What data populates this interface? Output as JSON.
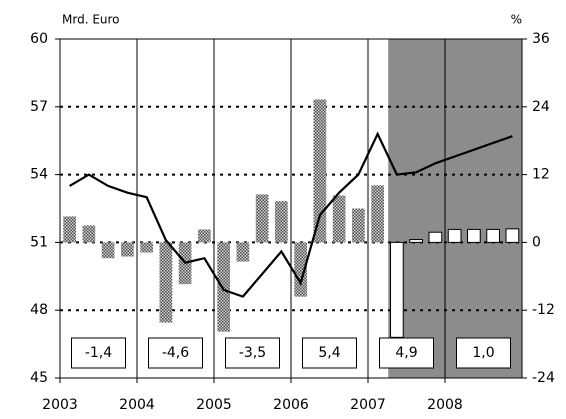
{
  "chart_data": {
    "type": "bar_line",
    "y_label": "Mrd. Euro",
    "y2_label": "%",
    "categories": [
      null,
      null,
      null,
      null,
      null,
      null,
      null,
      null,
      null,
      null,
      null,
      null,
      null,
      null,
      null,
      null,
      null,
      null,
      null,
      null,
      null,
      null,
      null,
      null
    ],
    "xlim": [
      2003,
      2009
    ],
    "xticks": [
      2003,
      2004,
      2005,
      2006,
      2007,
      2008
    ],
    "ylim": [
      45,
      60
    ],
    "yticks": [
      45,
      48,
      51,
      54,
      57,
      60
    ],
    "y2lim": [
      -24,
      36
    ],
    "y2ticks": [
      -24,
      -12,
      0,
      12,
      24,
      36
    ],
    "grid": true,
    "series": [
      {
        "type": "bar",
        "axis": "y2",
        "color": "#a8a8a8",
        "forecast_color": "#ffffff",
        "values": [
          4.6,
          3.0,
          -2.8,
          -2.5,
          -1.8,
          -14.2,
          -7.4,
          2.3,
          -15.8,
          -3.4,
          8.5,
          7.3,
          -9.6,
          25.3,
          8.3,
          6.0,
          10.1,
          -16.8,
          0.5,
          1.8,
          2.3,
          2.3,
          2.3,
          2.4
        ]
      },
      {
        "type": "line",
        "axis": "y",
        "color": "#000000",
        "values": [
          53.5,
          54.0,
          53.5,
          53.2,
          53.0,
          51.1,
          50.1,
          50.3,
          48.9,
          48.6,
          49.6,
          50.6,
          49.2,
          52.2,
          53.2,
          54.0,
          55.8,
          54.0,
          54.1,
          54.5,
          54.8,
          55.1,
          55.4,
          55.7
        ]
      }
    ],
    "annotations": [
      "-1,4",
      "-4,6",
      "-3,5",
      "5,4",
      "4,9",
      "1,0"
    ],
    "shade_color": "#8c8c8e"
  }
}
